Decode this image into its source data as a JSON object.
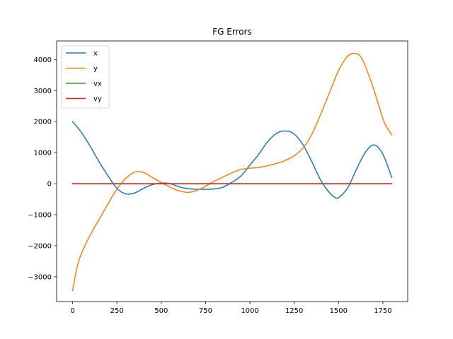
{
  "chart_data": {
    "type": "line",
    "title": "FG Errors",
    "xlabel": "",
    "ylabel": "",
    "xlim": [
      -90,
      1890
    ],
    "ylim": [
      -3800,
      4600
    ],
    "xticks": [
      0,
      250,
      500,
      750,
      1000,
      1250,
      1500,
      1750
    ],
    "yticks": [
      -3000,
      -2000,
      -1000,
      0,
      1000,
      2000,
      3000,
      4000
    ],
    "xtick_labels": [
      "0",
      "250",
      "500",
      "750",
      "1000",
      "1250",
      "1500",
      "1750"
    ],
    "ytick_labels": [
      "−3000",
      "−2000",
      "−1000",
      "0",
      "1000",
      "2000",
      "3000",
      "4000"
    ],
    "grid": false,
    "legend_position": "top-left",
    "series": [
      {
        "name": "x",
        "color": "#1f77b4",
        "points": [
          [
            0,
            2000
          ],
          [
            50,
            1650
          ],
          [
            100,
            1200
          ],
          [
            150,
            700
          ],
          [
            200,
            250
          ],
          [
            250,
            -150
          ],
          [
            300,
            -330
          ],
          [
            350,
            -300
          ],
          [
            400,
            -150
          ],
          [
            450,
            -30
          ],
          [
            500,
            20
          ],
          [
            550,
            0
          ],
          [
            600,
            -100
          ],
          [
            650,
            -160
          ],
          [
            700,
            -180
          ],
          [
            750,
            -180
          ],
          [
            800,
            -170
          ],
          [
            850,
            -110
          ],
          [
            900,
            50
          ],
          [
            950,
            250
          ],
          [
            1000,
            600
          ],
          [
            1050,
            950
          ],
          [
            1100,
            1350
          ],
          [
            1150,
            1620
          ],
          [
            1200,
            1700
          ],
          [
            1250,
            1600
          ],
          [
            1300,
            1250
          ],
          [
            1350,
            700
          ],
          [
            1400,
            100
          ],
          [
            1450,
            -300
          ],
          [
            1480,
            -440
          ],
          [
            1500,
            -450
          ],
          [
            1550,
            -150
          ],
          [
            1600,
            450
          ],
          [
            1650,
            1000
          ],
          [
            1700,
            1250
          ],
          [
            1750,
            950
          ],
          [
            1800,
            200
          ]
        ]
      },
      {
        "name": "y",
        "color": "#ff7f0e",
        "points": [
          [
            0,
            -3450
          ],
          [
            25,
            -2700
          ],
          [
            50,
            -2250
          ],
          [
            100,
            -1650
          ],
          [
            150,
            -1150
          ],
          [
            200,
            -650
          ],
          [
            250,
            -180
          ],
          [
            300,
            170
          ],
          [
            350,
            370
          ],
          [
            400,
            360
          ],
          [
            450,
            200
          ],
          [
            500,
            40
          ],
          [
            550,
            -110
          ],
          [
            600,
            -230
          ],
          [
            650,
            -280
          ],
          [
            700,
            -220
          ],
          [
            750,
            -80
          ],
          [
            800,
            80
          ],
          [
            850,
            220
          ],
          [
            900,
            350
          ],
          [
            950,
            460
          ],
          [
            1000,
            500
          ],
          [
            1050,
            520
          ],
          [
            1100,
            580
          ],
          [
            1150,
            650
          ],
          [
            1200,
            750
          ],
          [
            1250,
            900
          ],
          [
            1300,
            1150
          ],
          [
            1350,
            1600
          ],
          [
            1400,
            2250
          ],
          [
            1450,
            2950
          ],
          [
            1500,
            3650
          ],
          [
            1550,
            4100
          ],
          [
            1590,
            4200
          ],
          [
            1630,
            4050
          ],
          [
            1680,
            3350
          ],
          [
            1720,
            2650
          ],
          [
            1760,
            1950
          ],
          [
            1800,
            1580
          ]
        ]
      },
      {
        "name": "vx",
        "color": "#2ca02c",
        "points": [
          [
            0,
            0
          ],
          [
            1800,
            0
          ]
        ]
      },
      {
        "name": "vy",
        "color": "#d62728",
        "points": [
          [
            0,
            0
          ],
          [
            1800,
            0
          ]
        ]
      }
    ]
  }
}
